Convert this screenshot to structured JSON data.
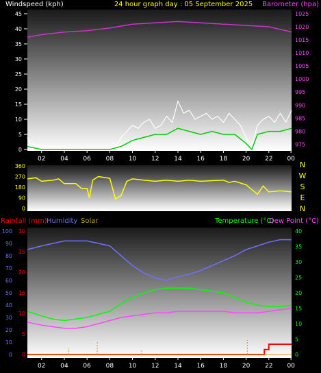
{
  "header": {
    "left": "Windspeed (kph)",
    "center": "24 hour graph day : 05 September 2025",
    "right": "Barometer (hpa)"
  },
  "colors": {
    "windspeed": "#ffffff",
    "gust": "#dddddd",
    "windspeed_avg": "#00cc00",
    "barometer": "#cc33cc",
    "direction": "#ffff00",
    "rainfall": "#ff0000",
    "humidity": "#7070ff",
    "solar": "#c0a000",
    "temperature": "#00ff00",
    "dewpoint": "#ff44ff",
    "axis_white": "#ffffff",
    "axis_yellow": "#ffff00"
  },
  "chart_data": [
    {
      "type": "line",
      "name": "wind-barometer",
      "title": "24 hour graph day : 05 September 2025",
      "xlabel": "",
      "ylabel": "Windspeed (kph)",
      "ylabel_right": "Barometer (hpa)",
      "x_ticks": [
        "02",
        "04",
        "06",
        "08",
        "10",
        "12",
        "14",
        "16",
        "18",
        "20",
        "22",
        "00"
      ],
      "x_range": [
        0.75,
        24.0
      ],
      "ylim": [
        0,
        45
      ],
      "y_ticks": [
        0,
        5,
        10,
        15,
        20,
        25,
        30,
        35,
        40,
        45
      ],
      "ylim_right": [
        973,
        1025
      ],
      "y_ticks_right": [
        975,
        980,
        985,
        990,
        995,
        1000,
        1005,
        1010,
        1015,
        1020,
        1025
      ],
      "series": [
        {
          "name": "Barometer (hpa)",
          "axis": "right",
          "x": [
            0.75,
            2,
            4,
            6,
            8,
            10,
            12,
            14,
            16,
            18,
            20,
            22,
            24
          ],
          "values": [
            1016,
            1017,
            1018,
            1018.5,
            1019.5,
            1021,
            1021.5,
            1022,
            1021.5,
            1021,
            1020.5,
            1020,
            1018
          ]
        },
        {
          "name": "Windspeed",
          "axis": "left",
          "x": [
            0.75,
            1,
            2,
            3,
            4,
            5,
            6,
            7,
            8,
            8.5,
            9,
            9.5,
            10,
            10.5,
            11,
            11.5,
            12,
            12.5,
            13,
            13.5,
            14,
            14.5,
            15,
            15.5,
            16,
            16.5,
            17,
            17.5,
            18,
            18.5,
            19,
            19.5,
            20,
            20.5,
            21,
            21.5,
            22,
            22.5,
            23,
            23.5,
            24
          ],
          "values": [
            4,
            2,
            1,
            1,
            1,
            0,
            0,
            0,
            0,
            1,
            4,
            6,
            8,
            7,
            9,
            10,
            7,
            8,
            11,
            9,
            16,
            12,
            13,
            10,
            11,
            12,
            10,
            11,
            9,
            12,
            10,
            8,
            4,
            1,
            8,
            10,
            11,
            9,
            12,
            9,
            13
          ]
        },
        {
          "name": "Average",
          "axis": "left",
          "x": [
            0.75,
            2,
            4,
            6,
            8,
            9,
            10,
            11,
            12,
            13,
            14,
            15,
            16,
            17,
            18,
            19,
            20,
            20.5,
            21,
            22,
            23,
            24
          ],
          "values": [
            1,
            0,
            0,
            0,
            0,
            1,
            3,
            4,
            5,
            5,
            7,
            6,
            5,
            6,
            5,
            5,
            2,
            0,
            5,
            6,
            6,
            7
          ]
        }
      ]
    },
    {
      "type": "line",
      "name": "wind-direction",
      "ylim": [
        0,
        360
      ],
      "y_ticks": [
        0,
        90,
        180,
        270,
        360
      ],
      "right_labels": [
        "N",
        "W",
        "S",
        "E",
        "N"
      ],
      "series": [
        {
          "name": "Direction",
          "x": [
            0.75,
            1.5,
            2,
            3,
            3.5,
            4,
            5,
            5.5,
            6,
            6.2,
            6.5,
            7,
            8,
            8.5,
            9,
            9.5,
            10,
            11,
            12,
            13,
            14,
            15,
            16,
            17,
            18,
            18.5,
            19,
            20,
            20.5,
            21,
            21.5,
            22,
            23,
            24
          ],
          "values": [
            250,
            260,
            230,
            240,
            250,
            210,
            210,
            170,
            170,
            90,
            240,
            270,
            255,
            80,
            110,
            230,
            250,
            240,
            230,
            240,
            230,
            240,
            230,
            235,
            240,
            220,
            230,
            200,
            160,
            120,
            190,
            140,
            150,
            140
          ]
        }
      ]
    },
    {
      "type": "line",
      "name": "temp-humidity-rain",
      "header_labels": [
        "Rainfall (mm)",
        "Humidity",
        "Solar",
        "Temperature (°C)",
        "Dew Point (°C)"
      ],
      "x_ticks": [
        "02",
        "04",
        "06",
        "08",
        "10",
        "12",
        "14",
        "16",
        "18",
        "20",
        "22",
        "00"
      ],
      "ylim_humidity": [
        0,
        100
      ],
      "y_ticks_humidity": [
        0,
        10,
        20,
        30,
        40,
        50,
        60,
        70,
        80,
        90,
        100
      ],
      "ylim_rain": [
        0,
        30
      ],
      "y_ticks_rain": [
        0,
        5,
        10,
        15,
        20,
        25,
        30
      ],
      "ylim_temp": [
        0,
        40
      ],
      "y_ticks_temp": [
        0,
        5,
        10,
        15,
        20,
        25,
        30,
        35,
        40
      ],
      "series": [
        {
          "name": "Humidity",
          "axis": "humidity",
          "x": [
            0.75,
            2,
            3,
            4,
            5,
            6,
            7,
            8,
            9,
            10,
            11,
            12,
            13,
            14,
            15,
            16,
            17,
            18,
            19,
            20,
            21,
            22,
            23,
            24
          ],
          "values": [
            85,
            88,
            90,
            92,
            92,
            92,
            90,
            88,
            80,
            72,
            66,
            62,
            60,
            63,
            65,
            68,
            72,
            76,
            80,
            85,
            88,
            91,
            93,
            93
          ]
        },
        {
          "name": "Temperature (°C)",
          "axis": "temp",
          "x": [
            0.75,
            2,
            3,
            4,
            5,
            6,
            7,
            8,
            9,
            10,
            11,
            12,
            13,
            14,
            15,
            16,
            17,
            18,
            19,
            20,
            21,
            22,
            23,
            24
          ],
          "values": [
            14,
            12.5,
            11.5,
            11,
            11.5,
            12,
            13,
            14,
            16.5,
            18.5,
            20,
            21,
            21.5,
            21.5,
            21.5,
            21,
            20.5,
            20,
            18.5,
            17,
            16,
            15.5,
            15.5,
            16
          ]
        },
        {
          "name": "Dew Point (°C)",
          "axis": "temp",
          "x": [
            0.75,
            2,
            3,
            4,
            5,
            6,
            7,
            8,
            9,
            10,
            11,
            12,
            13,
            14,
            15,
            16,
            17,
            18,
            19,
            20,
            21,
            22,
            23,
            24
          ],
          "values": [
            10.5,
            9.5,
            9,
            8.5,
            8.5,
            9,
            10,
            11,
            12,
            12.5,
            13,
            13.5,
            13.5,
            14,
            14,
            14,
            14,
            14,
            13.5,
            13.5,
            13.5,
            14,
            14.5,
            15
          ]
        },
        {
          "name": "Rainfall (mm)",
          "axis": "rain",
          "x": [
            0.75,
            21.0,
            21.6,
            21.6,
            22.0,
            22.0,
            24.0
          ],
          "values": [
            0,
            0,
            0,
            1.2,
            1.2,
            2.5,
            2.5
          ]
        },
        {
          "name": "Solar",
          "axis": "rain",
          "x": [
            4.4,
            6.9,
            10.8,
            20.1
          ],
          "values": [
            1.5,
            3,
            1,
            3.5
          ]
        }
      ]
    }
  ]
}
